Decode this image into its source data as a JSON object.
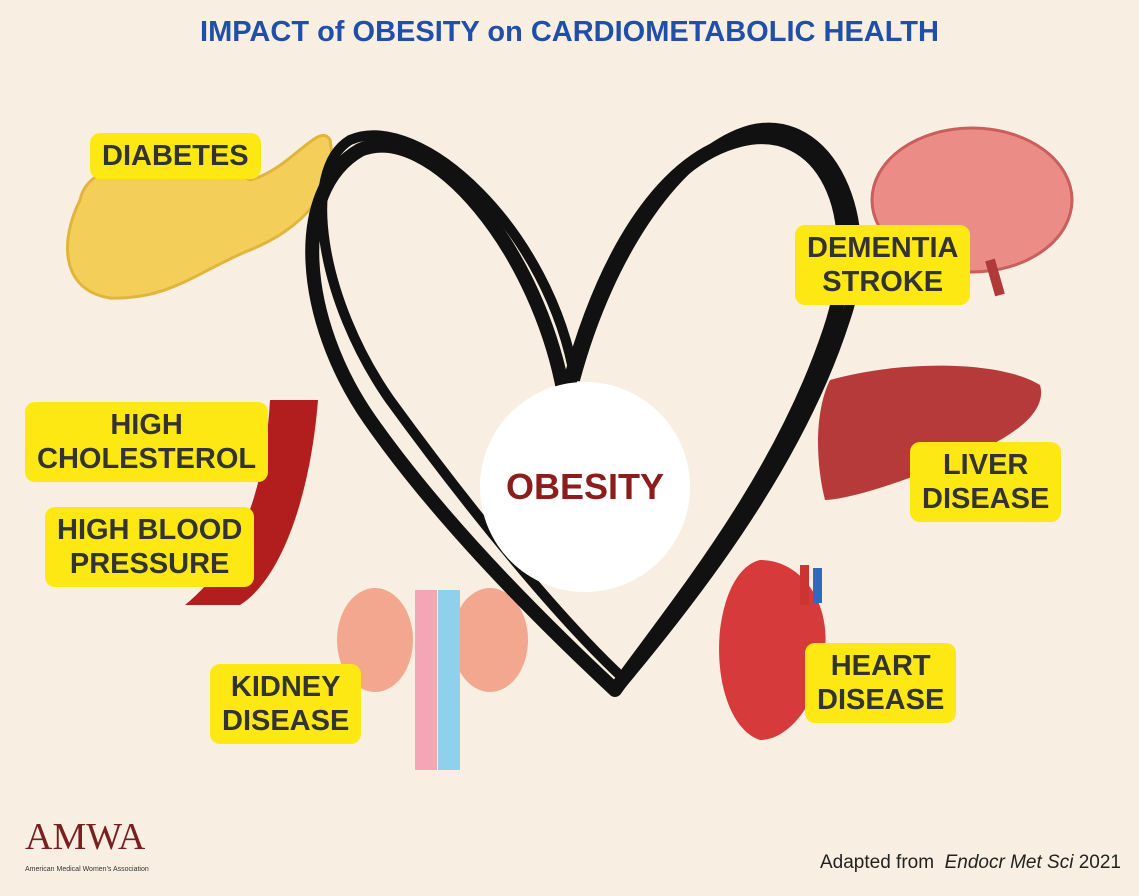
{
  "header": {
    "title": "IMPACT of OBESITY on CARDIOMETABOLIC HEALTH"
  },
  "center": {
    "label": "OBESITY"
  },
  "conditions": [
    {
      "lines": [
        "DIABETES"
      ]
    },
    {
      "lines": [
        "DEMENTIA",
        "STROKE"
      ]
    },
    {
      "lines": [
        "HIGH",
        "CHOLESTEROL"
      ]
    },
    {
      "lines": [
        "HIGH BLOOD",
        "PRESSURE"
      ]
    },
    {
      "lines": [
        "LIVER",
        "DISEASE"
      ]
    },
    {
      "lines": [
        "KIDNEY",
        "DISEASE"
      ]
    },
    {
      "lines": [
        "HEART",
        "DISEASE"
      ]
    }
  ],
  "logo": {
    "name": "AMWA",
    "full_name": "American Medical Women's Association"
  },
  "source": {
    "prefix": "Adapted from",
    "journal": "Endocr Met Sci",
    "year": "2021"
  }
}
